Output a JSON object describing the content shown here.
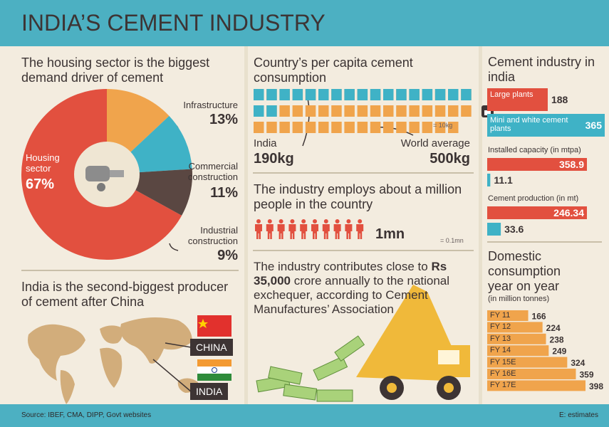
{
  "header": {
    "title": "INDIA’S CEMENT INDUSTRY"
  },
  "chart_data": [
    {
      "type": "pie",
      "title": "The housing sector is the biggest demand driver of cement",
      "categories": [
        "Housing sector",
        "Infrastructure",
        "Commercial construction",
        "Industrial construction"
      ],
      "values": [
        67,
        13,
        11,
        9
      ],
      "value_labels": [
        "67%",
        "13%",
        "11%",
        "9%"
      ],
      "colors": [
        "#e2503f",
        "#f0a44c",
        "#3fb2c6",
        "#5a4742"
      ]
    },
    {
      "type": "pictogram",
      "title": "Country’s per capita cement consumption",
      "unit": 10,
      "unit_label": "= 10kg",
      "series": [
        {
          "name": "India",
          "color": "#3fb2c6",
          "values": [
            190
          ],
          "value_labels": [
            "190kg"
          ]
        },
        {
          "name": "World average",
          "color": "#f0a44c",
          "values": [
            500
          ],
          "value_labels": [
            "500kg"
          ]
        }
      ]
    },
    {
      "type": "people",
      "title": "The industry employs about a million people in the country",
      "unit": 0.1,
      "unit_label": "= 0.1mn",
      "values": [
        1
      ],
      "value_labels": [
        "1mn"
      ],
      "color": "#e2503f"
    },
    {
      "type": "bar",
      "title": "Cement industry in india",
      "categories": [
        "Large plants",
        "Mini and white cement plants"
      ],
      "values": [
        188,
        365
      ],
      "colors": [
        "#e2503f",
        "#3fb2c6"
      ]
    },
    {
      "type": "bar",
      "title": "Installed capacity (in mtpa)",
      "values": [
        358.9,
        11.1
      ],
      "colors": [
        "#e2503f",
        "#3fb2c6"
      ]
    },
    {
      "type": "bar",
      "title": "Cement production (in mt)",
      "values": [
        246.34,
        33.6
      ],
      "colors": [
        "#e2503f",
        "#3fb2c6"
      ]
    },
    {
      "type": "bar",
      "title": "Domestic consumption year on year",
      "subtitle": "(in million tonnes)",
      "categories": [
        "FY 11",
        "FY 12",
        "FY 13",
        "FY 14",
        "FY 15E",
        "FY 16E",
        "FY 17E"
      ],
      "values": [
        166,
        224,
        238,
        249,
        324,
        359,
        398
      ],
      "color": "#f0a44c"
    }
  ],
  "map": {
    "title": "India is the second-biggest producer of cement after China",
    "labels": [
      "CHINA",
      "INDIA"
    ]
  },
  "contribution": {
    "text": [
      "The industry contributes close to ",
      "Rs 35,000",
      " crore annually to the national exchequer, according to Cement Manufactures’ Association"
    ]
  },
  "footer": {
    "source": "Source: IBEF, CMA, DIPP, Govt websites",
    "note": "E: estimates"
  }
}
